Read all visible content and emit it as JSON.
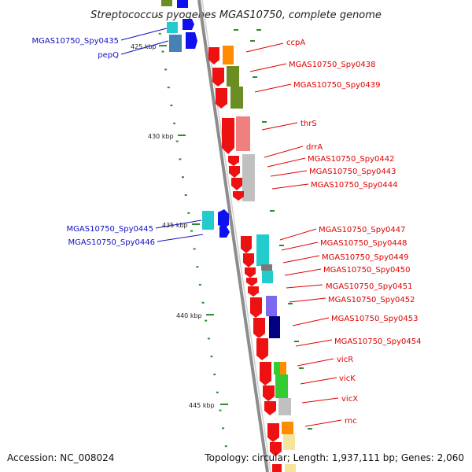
{
  "title": "Streptococcus pyogenes MGAS10750, complete genome",
  "accession": "Accession: NC_008024",
  "topology": "Topology: circular; Length: 1,937,111 bp; Genes: 2,060",
  "scale_labels": [
    "425 kbp",
    "430 kbp",
    "435 kbp",
    "440 kbp",
    "445 kbp"
  ],
  "colors": {
    "backbone": "#8c8c8c",
    "forward_strand_gene": "#ee1111",
    "reverse_strand_gene": "#1010ee",
    "right_labels": "#e00000",
    "left_labels": "#1010c0",
    "tick_marks": "#2e8b2e",
    "cog_cyan": "#22cccc",
    "cog_steelblue": "#4682b4",
    "cog_orange": "#ff8c00",
    "cog_olive": "#6b8e23",
    "cog_pink": "#f08080",
    "cog_gray": "#c0c0c0",
    "cog_slate": "#7b68ee",
    "cog_navy": "#000080",
    "cog_green": "#33cc33",
    "cog_yellow": "#f5e49c"
  },
  "genes_right": [
    {
      "label": "ccpA"
    },
    {
      "label": "MGAS10750_Spy0438"
    },
    {
      "label": "MGAS10750_Spy0439"
    },
    {
      "label": "thrS"
    },
    {
      "label": "drrA"
    },
    {
      "label": "MGAS10750_Spy0442"
    },
    {
      "label": "MGAS10750_Spy0443"
    },
    {
      "label": "MGAS10750_Spy0444"
    },
    {
      "label": "MGAS10750_Spy0447"
    },
    {
      "label": "MGAS10750_Spy0448"
    },
    {
      "label": "MGAS10750_Spy0449"
    },
    {
      "label": "MGAS10750_Spy0450"
    },
    {
      "label": "MGAS10750_Spy0451"
    },
    {
      "label": "MGAS10750_Spy0452"
    },
    {
      "label": "MGAS10750_Spy0453"
    },
    {
      "label": "MGAS10750_Spy0454"
    },
    {
      "label": "vicR"
    },
    {
      "label": "vicK"
    },
    {
      "label": "vicX"
    },
    {
      "label": "rnc"
    }
  ],
  "genes_left": [
    {
      "label": "MGAS10750_Spy0435"
    },
    {
      "label": "pepQ"
    },
    {
      "label": "MGAS10750_Spy0445"
    },
    {
      "label": "MGAS10750_Spy0446"
    }
  ]
}
